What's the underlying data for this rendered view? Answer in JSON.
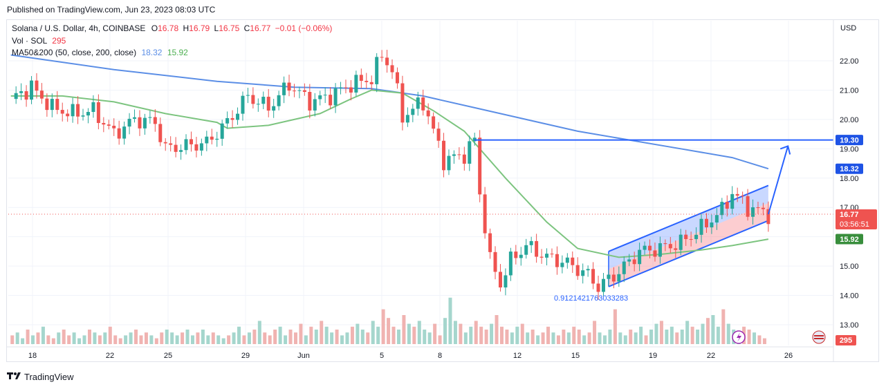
{
  "header": {
    "published": "Published on TradingView.com, Jun 23, 2023 08:03 UTC"
  },
  "legend": {
    "symbol": "Solana / U.S. Dollar, 4h, COINBASE",
    "o_label": "O",
    "o": "16.78",
    "h_label": "H",
    "h": "16.79",
    "l_label": "L",
    "l": "16.75",
    "c_label": "C",
    "c": "16.77",
    "change": "−0.01 (−0.06%)",
    "vol_label": "Vol · SOL",
    "vol": "295",
    "ma_label": "MA50&200 (50, close, 200, close)",
    "ma200": "18.32",
    "ma50": "15.92"
  },
  "colors": {
    "up": "#26a69a",
    "down": "#ef5350",
    "ma200": "#5b8ee6",
    "ma50": "#7cc47f",
    "accent": "#2962ff"
  },
  "annotation": {
    "value_text": "0.9121421763033283"
  },
  "footer": {
    "brand": "TradingView"
  },
  "chart_data": {
    "type": "candlestick",
    "title": "Solana / U.S. Dollar, 4h, COINBASE",
    "currency": "USD",
    "x_ticks": [
      "18",
      "22",
      "25",
      "29",
      "Jun",
      "5",
      "8",
      "12",
      "15",
      "19",
      "22",
      "26"
    ],
    "y_ticks": [
      "22.00",
      "21.00",
      "20.00",
      "19.00",
      "18.00",
      "17.00",
      "16.00",
      "15.00",
      "14.00",
      "13.00"
    ],
    "ylim": [
      12.6,
      23.1
    ],
    "price_labels": {
      "resistance": "19.30",
      "ma200": "18.32",
      "last": "16.77",
      "countdown": "03:56:51",
      "ma50": "15.92",
      "volume": "295"
    },
    "resistance_level": 19.3,
    "last_price": 16.77,
    "ma200_points": [
      [
        0,
        22.2
      ],
      [
        20,
        21.7
      ],
      [
        40,
        21.3
      ],
      [
        55,
        21.1
      ],
      [
        70,
        21.05
      ],
      [
        80,
        20.8
      ],
      [
        90,
        20.4
      ],
      [
        100,
        20.0
      ],
      [
        110,
        19.6
      ],
      [
        120,
        19.3
      ],
      [
        130,
        19.0
      ],
      [
        140,
        18.7
      ],
      [
        147,
        18.32
      ]
    ],
    "ma50_points": [
      [
        0,
        20.8
      ],
      [
        10,
        20.8
      ],
      [
        20,
        20.6
      ],
      [
        30,
        20.2
      ],
      [
        40,
        19.9
      ],
      [
        42,
        19.7
      ],
      [
        50,
        19.8
      ],
      [
        60,
        20.2
      ],
      [
        66,
        20.7
      ],
      [
        70,
        21.0
      ],
      [
        76,
        20.9
      ],
      [
        82,
        20.3
      ],
      [
        88,
        19.6
      ],
      [
        96,
        18.0
      ],
      [
        104,
        16.5
      ],
      [
        110,
        15.6
      ],
      [
        118,
        15.3
      ],
      [
        126,
        15.4
      ],
      [
        134,
        15.55
      ],
      [
        140,
        15.7
      ],
      [
        147,
        15.92
      ]
    ],
    "price_points": [
      [
        0,
        20.7
      ],
      [
        4,
        21.1
      ],
      [
        8,
        20.4
      ],
      [
        12,
        20.2
      ],
      [
        16,
        20.3
      ],
      [
        20,
        19.5
      ],
      [
        24,
        20.0
      ],
      [
        28,
        19.9
      ],
      [
        30,
        19.0
      ],
      [
        34,
        19.1
      ],
      [
        38,
        19.2
      ],
      [
        42,
        19.9
      ],
      [
        46,
        20.8
      ],
      [
        50,
        20.4
      ],
      [
        54,
        21.2
      ],
      [
        58,
        20.6
      ],
      [
        62,
        20.8
      ],
      [
        66,
        21.2
      ],
      [
        70,
        21.4
      ],
      [
        72,
        22.2
      ],
      [
        74,
        21.7
      ],
      [
        76,
        20.1
      ],
      [
        80,
        20.6
      ],
      [
        84,
        18.6
      ],
      [
        88,
        18.8
      ],
      [
        90,
        19.3
      ],
      [
        91,
        17.5
      ],
      [
        93,
        15.2
      ],
      [
        95,
        14.4
      ],
      [
        97,
        15.2
      ],
      [
        100,
        15.7
      ],
      [
        104,
        15.3
      ],
      [
        108,
        15.1
      ],
      [
        112,
        14.7
      ],
      [
        114,
        14.3
      ],
      [
        118,
        14.8
      ],
      [
        122,
        15.5
      ],
      [
        126,
        15.6
      ],
      [
        130,
        15.8
      ],
      [
        134,
        16.3
      ],
      [
        138,
        16.9
      ],
      [
        140,
        17.5
      ],
      [
        143,
        17.0
      ],
      [
        147,
        16.77
      ]
    ],
    "channel": {
      "upper": [
        [
          116,
          15.5
        ],
        [
          147,
          17.75
        ]
      ],
      "lower": [
        [
          116,
          14.3
        ],
        [
          147,
          16.55
        ]
      ]
    },
    "projection": {
      "from": [
        147,
        16.77
      ],
      "to": [
        150,
        18.95
      ]
    },
    "volume_bars": [
      3,
      4,
      2,
      5,
      3,
      4,
      6,
      3,
      2,
      4,
      5,
      3,
      4,
      2,
      3,
      5,
      4,
      3,
      4,
      6,
      3,
      2,
      3,
      4,
      5,
      3,
      4,
      3,
      2,
      4,
      5,
      4,
      3,
      4,
      5,
      3,
      4,
      5,
      3,
      4,
      3,
      2,
      3,
      4,
      6,
      3,
      4,
      5,
      8,
      4,
      3,
      5,
      6,
      3,
      5,
      4,
      7,
      3,
      6,
      5,
      8,
      6,
      4,
      5,
      3,
      4,
      6,
      7,
      5,
      4,
      8,
      6,
      12,
      9,
      6,
      5,
      10,
      7,
      6,
      8,
      5,
      4,
      7,
      3,
      9,
      16,
      8,
      7,
      4,
      6,
      8,
      6,
      5,
      7,
      10,
      6,
      5,
      4,
      6,
      7,
      4,
      5,
      3,
      4,
      6,
      4,
      3,
      5,
      4,
      6,
      5,
      3,
      4,
      8,
      4,
      3,
      5,
      12,
      4,
      3,
      5,
      4,
      6,
      3,
      5,
      7,
      8,
      5,
      6,
      4,
      5,
      8,
      6,
      5,
      7,
      9,
      10,
      6,
      12,
      7,
      5,
      4,
      6,
      5,
      4,
      3,
      2
    ]
  }
}
